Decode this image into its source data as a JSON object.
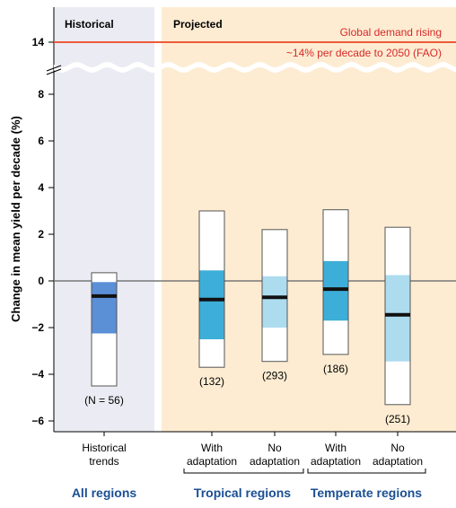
{
  "chart_data": {
    "type": "boxplot",
    "ylabel": "Change in mean yield per decade (%)",
    "y_ticks": [
      14,
      8,
      6,
      4,
      2,
      0,
      -2,
      -4,
      -6
    ],
    "y_axis_break": "between 8 and 14",
    "panels": [
      {
        "label": "Historical",
        "background": "#ebebf3"
      },
      {
        "label": "Projected",
        "background": "#fdecd2"
      }
    ],
    "reference_line": {
      "value": 14,
      "label_line1": "Global demand rising",
      "label_line2": "~14% per decade to 2050 (FAO)",
      "color": "#ee5a38"
    },
    "zero_line": 0,
    "boxes": [
      {
        "category_line1": "Historical",
        "category_line2": "trends",
        "group": "All regions",
        "whisker_low": -4.5,
        "q1": -2.25,
        "median": -0.65,
        "q3": -0.05,
        "whisker_high": 0.35,
        "n_label": "(N = 56)",
        "color": "#5b8fd6"
      },
      {
        "category_line1": "With",
        "category_line2": "adaptation",
        "group": "Tropical regions",
        "whisker_low": -3.7,
        "q1": -2.5,
        "median": -0.8,
        "q3": 0.45,
        "whisker_high": 3.0,
        "n_label": "(132)",
        "color": "#3daed8"
      },
      {
        "category_line1": "No",
        "category_line2": "adaptation",
        "group": "Tropical regions",
        "whisker_low": -3.45,
        "q1": -2.0,
        "median": -0.7,
        "q3": 0.2,
        "whisker_high": 2.2,
        "n_label": "(293)",
        "color": "#addcef"
      },
      {
        "category_line1": "With",
        "category_line2": "adaptation",
        "group": "Temperate regions",
        "whisker_low": -3.15,
        "q1": -1.7,
        "median": -0.35,
        "q3": 0.85,
        "whisker_high": 3.05,
        "n_label": "(186)",
        "color": "#3daed8"
      },
      {
        "category_line1": "No",
        "category_line2": "adaptation",
        "group": "Temperate regions",
        "whisker_low": -5.3,
        "q1": -3.45,
        "median": -1.45,
        "q3": 0.25,
        "whisker_high": 2.3,
        "n_label": "(251)",
        "color": "#addcef"
      }
    ],
    "groups": [
      "All regions",
      "Tropical regions",
      "Temperate regions"
    ],
    "grid": false,
    "legend": "none"
  }
}
